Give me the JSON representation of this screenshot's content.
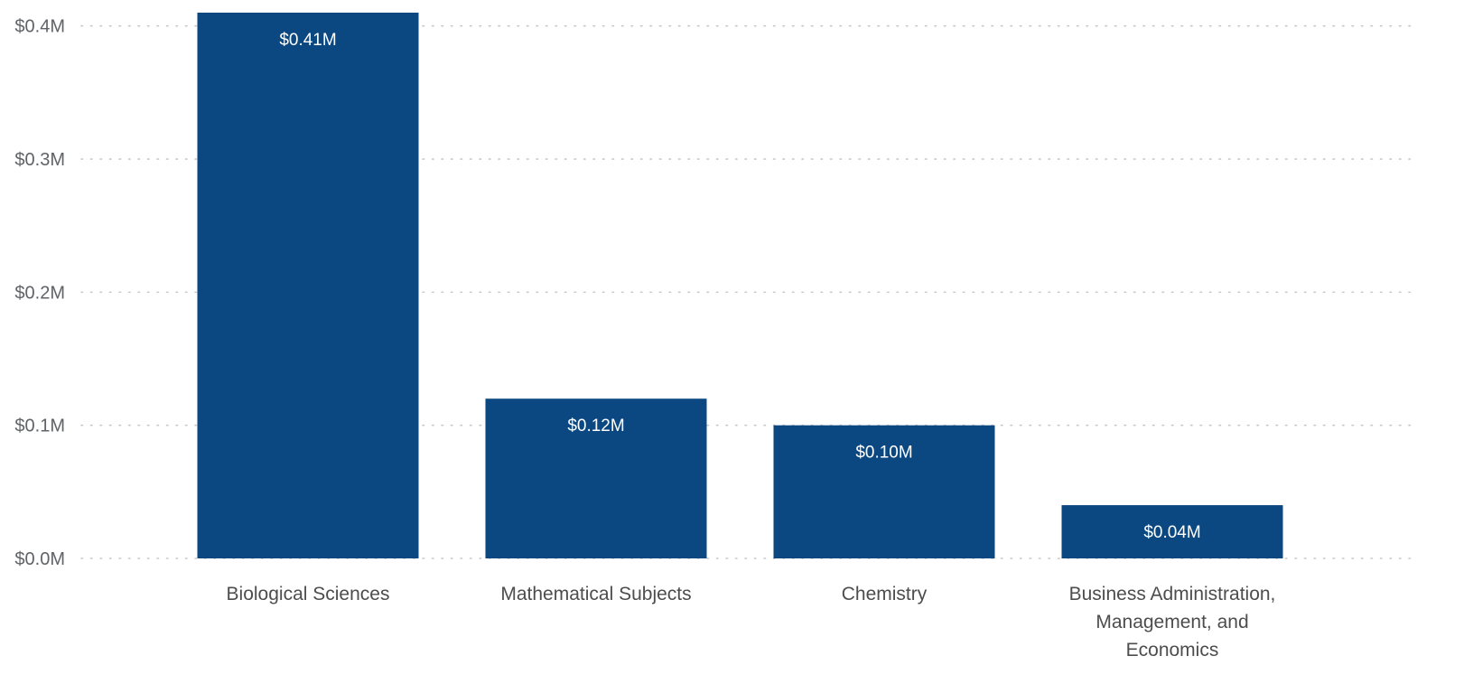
{
  "chart_data": {
    "type": "bar",
    "categories": [
      [
        "Biological Sciences"
      ],
      [
        "Mathematical Subjects"
      ],
      [
        "Chemistry"
      ],
      [
        "Business Administration,",
        "Management, and",
        "Economics"
      ]
    ],
    "values": [
      0.41,
      0.12,
      0.1,
      0.04
    ],
    "data_labels": [
      "$0.41M",
      "$0.12M",
      "$0.10M",
      "$0.04M"
    ],
    "y_ticks": [
      {
        "value": 0.0,
        "label": "$0.0M"
      },
      {
        "value": 0.1,
        "label": "$0.1M"
      },
      {
        "value": 0.2,
        "label": "$0.2M"
      },
      {
        "value": 0.3,
        "label": "$0.3M"
      },
      {
        "value": 0.4,
        "label": "$0.4M"
      }
    ],
    "ylim": [
      0,
      0.41
    ],
    "grid": true,
    "grid_style": "dotted",
    "bar_color": "#0b4780",
    "grid_color": "#c8c8c8",
    "title": "",
    "xlabel": "",
    "ylabel": "",
    "legend": "none"
  }
}
